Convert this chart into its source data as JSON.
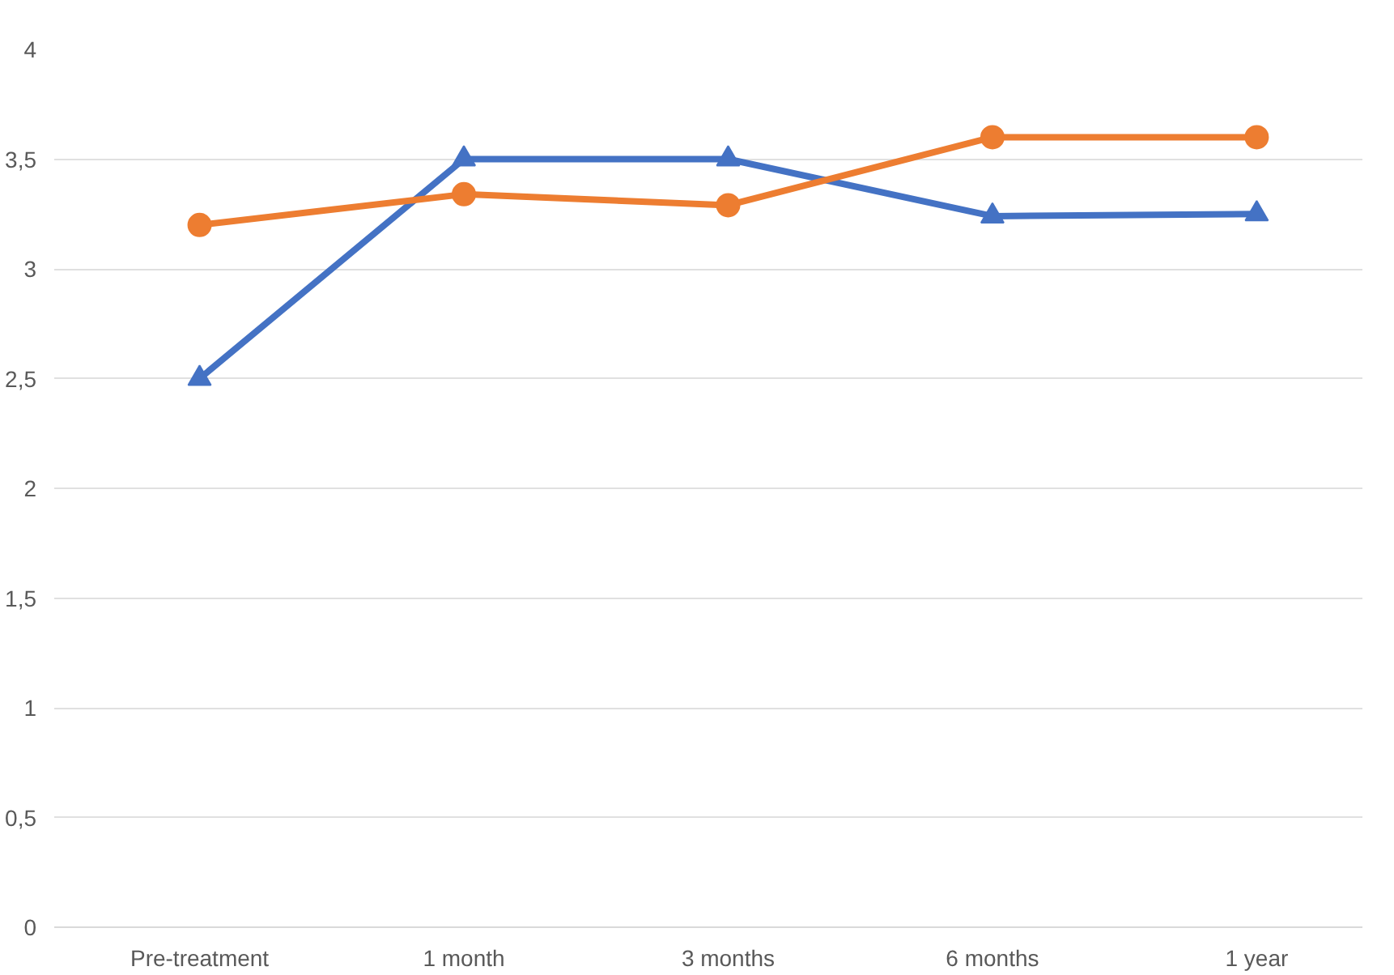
{
  "chart_data": {
    "type": "line",
    "categories": [
      "Pre-treatment",
      "1 month",
      "3 months",
      "6 months",
      "1 year"
    ],
    "series": [
      {
        "color": "#4472c4",
        "marker": "triangle",
        "values": [
          2.5,
          3.5,
          3.5,
          3.24,
          3.25
        ]
      },
      {
        "color": "#ed7d31",
        "marker": "circle",
        "values": [
          3.2,
          3.34,
          3.29,
          3.6,
          3.6
        ]
      }
    ],
    "ylim": [
      0,
      4
    ],
    "yticks": [
      0,
      {
        "value": 0.5,
        "label": "0,5"
      },
      1,
      {
        "value": 1.5,
        "label": "1,5"
      },
      2,
      {
        "value": 2.5,
        "label": "2,5"
      },
      3,
      {
        "value": 3.5,
        "label": "3,5"
      },
      4
    ],
    "grid": "y"
  }
}
